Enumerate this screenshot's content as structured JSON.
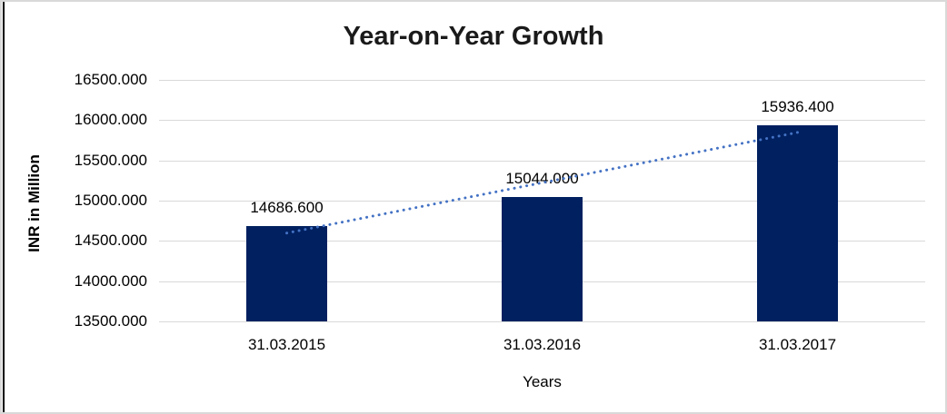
{
  "chart_data": {
    "type": "bar",
    "title": "Year-on-Year Growth",
    "xlabel": "Years",
    "ylabel": "INR in Million",
    "categories": [
      "31.03.2015",
      "31.03.2016",
      "31.03.2017"
    ],
    "values": [
      14686.6,
      15044.0,
      15936.4
    ],
    "value_labels": [
      "14686.600",
      "15044.000",
      "15936.400"
    ],
    "ylim": [
      13500,
      16500
    ],
    "ytick_step": 500,
    "ytick_labels": [
      "16500.000",
      "16000.000",
      "15500.000",
      "15000.000",
      "14500.000",
      "14000.000",
      "13500.000"
    ],
    "grid": true,
    "legend": false,
    "trendline": {
      "type": "linear",
      "style": "dotted"
    },
    "colors": {
      "bar": "#002060",
      "trendline": "#4472C4",
      "gridline": "#d9d9d9",
      "frame_border": "#d9d9d9",
      "left_edge": "#000000",
      "title_text": "#1a1a1a",
      "text": "#000000"
    }
  }
}
